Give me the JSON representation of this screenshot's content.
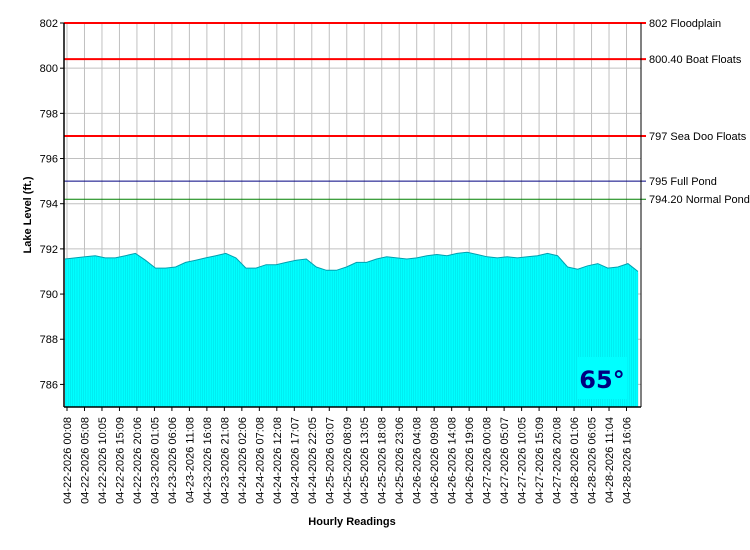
{
  "chart_data": {
    "type": "area",
    "title": "",
    "xlabel": "Hourly Readings",
    "ylabel": "Lake Level (ft.)",
    "ylim": [
      785,
      802
    ],
    "y_ticks": [
      786,
      788,
      790,
      792,
      794,
      796,
      798,
      800,
      802
    ],
    "grid": true,
    "x_start": "04-22-2026 00:08",
    "x_tick_labels": [
      "04-22-2026 00:08",
      "04-22-2026 05:08",
      "04-22-2026 10:05",
      "04-22-2026 15:09",
      "04-22-2026 20:06",
      "04-23-2026 01:05",
      "04-23-2026 06:06",
      "04-23-2026 11:08",
      "04-23-2026 16:08",
      "04-23-2026 21:08",
      "04-24-2026 02:06",
      "04-24-2026 07:08",
      "04-24-2026 12:08",
      "04-24-2026 17:07",
      "04-24-2026 22:05",
      "04-25-2026 03:07",
      "04-25-2026 08:09",
      "04-25-2026 13:05",
      "04-25-2026 18:08",
      "04-25-2026 23:06",
      "04-26-2026 04:08",
      "04-26-2026 09:08",
      "04-26-2026 14:08",
      "04-26-2026 19:06",
      "04-27-2026 00:08",
      "04-27-2026 05:07",
      "04-27-2026 10:05",
      "04-27-2026 15:09",
      "04-27-2026 20:08",
      "04-28-2026 01:06",
      "04-28-2026 06:05",
      "04-28-2026 11:04",
      "04-28-2026 16:06"
    ],
    "series": [
      {
        "color": "#00ffff",
        "values": [
          791.55,
          791.6,
          791.65,
          791.7,
          791.6,
          791.6,
          791.7,
          791.8,
          791.5,
          791.15,
          791.15,
          791.2,
          791.4,
          791.5,
          791.6,
          791.7,
          791.8,
          791.6,
          791.15,
          791.15,
          791.3,
          791.3,
          791.4,
          791.5,
          791.55,
          791.2,
          791.05,
          791.05,
          791.2,
          791.4,
          791.4,
          791.55,
          791.65,
          791.6,
          791.55,
          791.6,
          791.7,
          791.75,
          791.7,
          791.8,
          791.85,
          791.75,
          791.65,
          791.6,
          791.65,
          791.6,
          791.65,
          791.7,
          791.8,
          791.7,
          791.2,
          791.1,
          791.25,
          791.35,
          791.15,
          791.2,
          791.35,
          791.0
        ]
      }
    ],
    "reference_lines": [
      {
        "value": 802,
        "label": "802 Floodplain",
        "color": "#ff0000"
      },
      {
        "value": 800.4,
        "label": "800.40 Boat Floats",
        "color": "#ff0000"
      },
      {
        "value": 797,
        "label": "797 Sea Doo Floats",
        "color": "#ff0000"
      },
      {
        "value": 795,
        "label": "795 Full Pond",
        "color": "#000080"
      },
      {
        "value": 794.2,
        "label": "794.20 Normal Pond",
        "color": "#008000"
      }
    ],
    "annotation": {
      "text": "65°",
      "background": "#00ffff",
      "color": "#000080"
    }
  }
}
